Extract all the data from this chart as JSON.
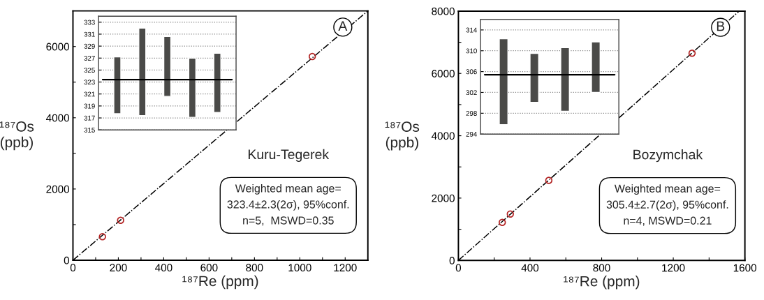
{
  "chart_data": [
    {
      "type": "scatter",
      "title": "A",
      "xlabel": "¹⁸⁷Re (ppm)",
      "ylabel": "¹⁸⁷Os\n(ppb)",
      "xlim": [
        0,
        1300
      ],
      "ylim": [
        0,
        7000
      ],
      "xticks": [
        0,
        {
          "value": 100,
          "label": null
        },
        200,
        {
          "value": 300,
          "label": null
        },
        400,
        {
          "value": 500,
          "label": null
        },
        600,
        {
          "value": 700,
          "label": null
        },
        800,
        {
          "value": 900,
          "label": null
        },
        1000,
        {
          "value": 1100,
          "label": null
        },
        1200
      ],
      "yticks": [
        0,
        {
          "value": 1000,
          "label": null
        },
        2000,
        {
          "value": 3000,
          "label": null
        },
        4000,
        {
          "value": 5000,
          "label": null
        },
        6000
      ],
      "series": [
        {
          "type": "scatter",
          "color": "#b22222",
          "marker": "circle",
          "x": [
            130,
            210,
            1055
          ],
          "values": [
            660,
            1120,
            5720
          ]
        },
        {
          "type": "line",
          "color": "#000000",
          "marker": "none",
          "line_style": "dashdot",
          "x": [
            0,
            1300
          ],
          "values": [
            0,
            7000
          ]
        }
      ],
      "annotations": [
        "Kuru-Tegerek",
        "Weighted mean age=\n323.4±2.3(2σ), 95%conf.\nn=5,  MSWD=0.35"
      ]
    },
    {
      "type": "bar",
      "categories": [
        null,
        null,
        null,
        null,
        null
      ],
      "base": [
        317.7,
        317.4,
        320.6,
        317.1,
        317.9
      ],
      "values": [
        9.5,
        14.6,
        10.0,
        9.9,
        9.9
      ],
      "color": "#4a4a48",
      "ylim": [
        315,
        334
      ],
      "yticks": [
        315,
        317,
        319,
        321,
        323,
        325,
        327,
        329,
        331,
        333
      ],
      "grid": "y",
      "tick_labels": "y",
      "ref_lines": [
        {
          "axis": "y",
          "value": 323.4,
          "color": "#000000"
        }
      ]
    },
    {
      "type": "scatter",
      "title": "B",
      "xlabel": "¹⁸⁷Re (ppm)",
      "ylabel": "¹⁸⁷Os\n(ppb)",
      "xlim": [
        0,
        1600
      ],
      "ylim": [
        0,
        8000
      ],
      "xticks": [
        0,
        {
          "value": 200,
          "label": null
        },
        400,
        {
          "value": 600,
          "label": null
        },
        800,
        {
          "value": 1000,
          "label": null
        },
        1200,
        {
          "value": 1400,
          "label": null
        },
        1600
      ],
      "yticks": [
        0,
        {
          "value": 1000,
          "label": null
        },
        2000,
        {
          "value": 3000,
          "label": null
        },
        4000,
        {
          "value": 5000,
          "label": null
        },
        6000,
        {
          "value": 7000,
          "label": null
        },
        8000
      ],
      "series": [
        {
          "type": "scatter",
          "color": "#b22222",
          "marker": "circle",
          "x": [
            245,
            290,
            505,
            1305
          ],
          "values": [
            1220,
            1490,
            2570,
            6650
          ]
        },
        {
          "type": "line",
          "color": "#000000",
          "marker": "none",
          "line_style": "dashdot",
          "x": [
            0,
            1568
          ],
          "values": [
            0,
            8000
          ]
        }
      ],
      "annotations": [
        "Bozymchak",
        "Weighted mean age=\n305.4±2.7(2σ), 95%conf.\nn=4, MSWD=0.21"
      ]
    },
    {
      "type": "bar",
      "categories": [
        null,
        null,
        null,
        null
      ],
      "base": [
        295.8,
        300.1,
        298.4,
        302.0
      ],
      "values": [
        16.5,
        9.4,
        12.2,
        9.7
      ],
      "color": "#4a4a48",
      "ylim": [
        294,
        316
      ],
      "yticks": [
        294,
        298,
        302,
        306,
        310,
        314
      ],
      "grid": "y",
      "tick_labels": "y",
      "ref_lines": [
        {
          "axis": "y",
          "value": 305.4,
          "color": "#000000"
        }
      ]
    }
  ]
}
